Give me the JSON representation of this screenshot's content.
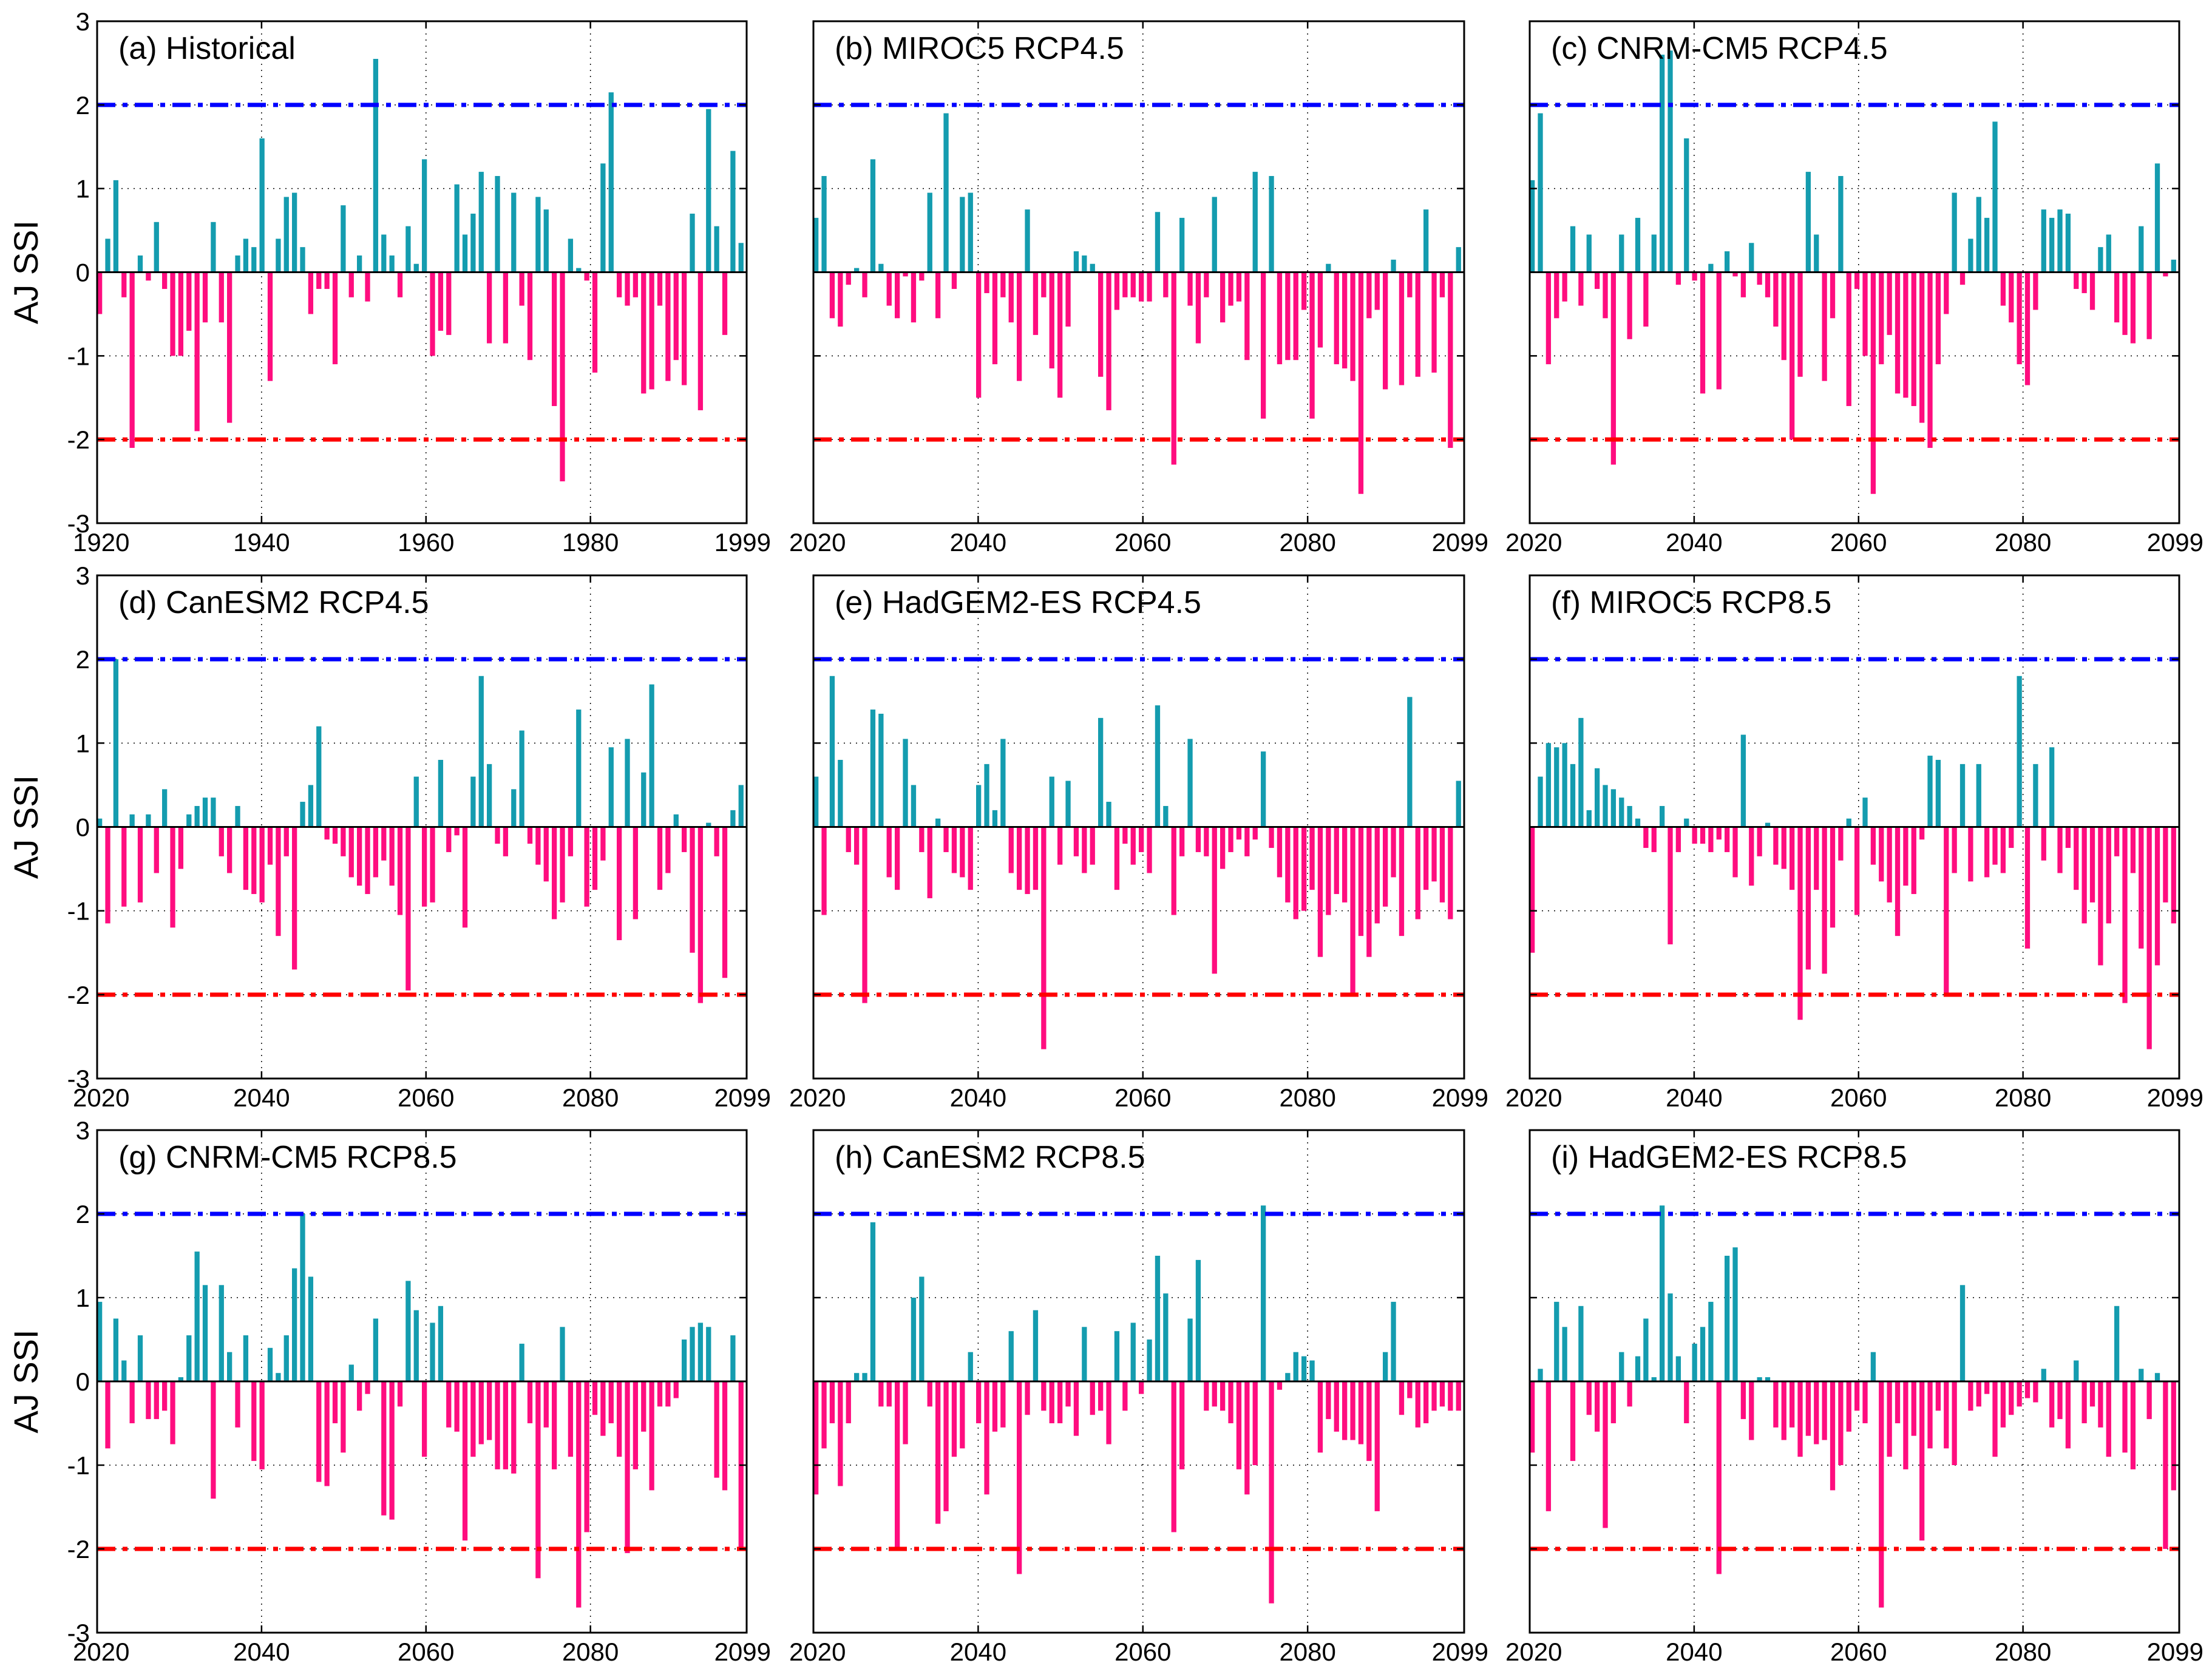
{
  "colors": {
    "positive": "#149caf",
    "negative": "#ff0d7f",
    "upper_threshold": "#0000ff",
    "lower_threshold": "#ff0000"
  },
  "ylabel": "AJ SSI",
  "chart_data": [
    {
      "type": "bar",
      "title": "(a) Historical",
      "xlabel": "",
      "ylabel": "AJ SSI",
      "ylim": [
        -3,
        3
      ],
      "yticks": [
        -3,
        -2,
        -1,
        0,
        1,
        2,
        3
      ],
      "xlim": [
        1920,
        1999
      ],
      "xticks": [
        1920,
        1940,
        1960,
        1980,
        1999
      ],
      "thresholds": [
        2,
        -2
      ],
      "x_start": 1920,
      "values": [
        -0.5,
        0.4,
        1.1,
        -0.3,
        -2.1,
        0.2,
        -0.1,
        0.6,
        -0.2,
        -1.0,
        -1.0,
        -0.7,
        -1.9,
        -0.6,
        0.6,
        -0.6,
        -1.8,
        0.2,
        0.4,
        0.3,
        1.6,
        -1.3,
        0.4,
        0.9,
        0.95,
        0.3,
        -0.5,
        -0.2,
        -0.2,
        -1.1,
        0.8,
        -0.3,
        0.2,
        -0.35,
        2.55,
        0.45,
        0.2,
        -0.3,
        0.55,
        0.1,
        1.35,
        -1.0,
        -0.7,
        -0.75,
        1.05,
        0.45,
        0.7,
        1.2,
        -0.85,
        1.15,
        -0.85,
        0.95,
        -0.4,
        -1.05,
        0.9,
        0.75,
        -1.6,
        -2.5,
        0.4,
        0.05,
        -0.1,
        -1.2,
        1.3,
        2.15,
        -0.3,
        -0.4,
        -0.3,
        -1.45,
        -1.4,
        -0.4,
        -1.3,
        -1.05,
        -1.35,
        0.7,
        -1.65,
        1.95,
        0.55,
        -0.75,
        1.45,
        0.35
      ]
    },
    {
      "type": "bar",
      "title": "(b) MIROC5 RCP4.5",
      "xlabel": "",
      "ylabel": "",
      "ylim": [
        -3,
        3
      ],
      "yticks": [
        -3,
        -2,
        -1,
        0,
        1,
        2,
        3
      ],
      "xlim": [
        2020,
        2099
      ],
      "xticks": [
        2020,
        2040,
        2060,
        2080,
        2099
      ],
      "thresholds": [
        2,
        -2
      ],
      "x_start": 2020,
      "values": [
        0.65,
        1.15,
        -0.55,
        -0.65,
        -0.15,
        0.05,
        -0.3,
        1.35,
        0.1,
        -0.4,
        -0.55,
        -0.05,
        -0.6,
        -0.1,
        0.95,
        -0.55,
        1.9,
        -0.2,
        0.9,
        0.95,
        -1.5,
        -0.25,
        -1.1,
        -0.3,
        -0.6,
        -1.3,
        0.75,
        -0.75,
        -0.3,
        -1.15,
        -1.5,
        -0.65,
        0.25,
        0.2,
        0.1,
        -1.25,
        -1.65,
        -0.45,
        -0.3,
        -0.3,
        -0.35,
        -0.35,
        0.72,
        -0.3,
        -2.3,
        0.65,
        -0.4,
        -0.85,
        -0.3,
        0.9,
        -0.6,
        -0.4,
        -0.35,
        -1.05,
        1.2,
        -1.75,
        1.15,
        -1.1,
        -1.05,
        -1.05,
        -0.45,
        -1.75,
        -0.9,
        0.1,
        -1.1,
        -1.15,
        -1.3,
        -2.65,
        -0.55,
        -0.45,
        -1.4,
        0.15,
        -1.35,
        -0.3,
        -1.25,
        0.75,
        -1.2,
        -0.3,
        -2.1,
        0.3
      ]
    },
    {
      "type": "bar",
      "title": "(c) CNRM-CM5 RCP4.5",
      "xlabel": "",
      "ylabel": "",
      "ylim": [
        -3,
        3
      ],
      "yticks": [
        -3,
        -2,
        -1,
        0,
        1,
        2,
        3
      ],
      "xlim": [
        2020,
        2099
      ],
      "xticks": [
        2020,
        2040,
        2060,
        2080,
        2099
      ],
      "thresholds": [
        2,
        -2
      ],
      "x_start": 2020,
      "values": [
        1.1,
        1.9,
        -1.1,
        -0.55,
        -0.35,
        0.55,
        -0.4,
        0.45,
        -0.2,
        -0.55,
        -2.3,
        0.45,
        -0.8,
        0.65,
        -0.65,
        0.45,
        2.6,
        2.65,
        -0.15,
        1.6,
        -0.1,
        -1.45,
        0.1,
        -1.4,
        0.25,
        -0.05,
        -0.3,
        0.35,
        -0.15,
        -0.3,
        -0.65,
        -1.05,
        -2.0,
        -1.25,
        1.2,
        0.45,
        -1.3,
        -0.55,
        1.15,
        -1.6,
        -0.2,
        -1.0,
        -2.65,
        -1.1,
        -0.75,
        -1.45,
        -1.5,
        -1.6,
        -1.8,
        -2.1,
        -1.1,
        -0.5,
        0.95,
        -0.15,
        0.4,
        0.9,
        0.65,
        1.8,
        -0.4,
        -0.6,
        -1.1,
        -1.35,
        -0.45,
        0.75,
        0.65,
        0.75,
        0.7,
        -0.2,
        -0.25,
        -0.45,
        0.3,
        0.45,
        -0.6,
        -0.75,
        -0.85,
        0.55,
        -0.8,
        1.3,
        -0.05,
        0.15
      ]
    },
    {
      "type": "bar",
      "title": "(d) CanESM2 RCP4.5",
      "xlabel": "",
      "ylabel": "AJ SSI",
      "ylim": [
        -3,
        3
      ],
      "yticks": [
        -3,
        -2,
        -1,
        0,
        1,
        2,
        3
      ],
      "xlim": [
        2020,
        2099
      ],
      "xticks": [
        2020,
        2040,
        2060,
        2080,
        2099
      ],
      "thresholds": [
        2,
        -2
      ],
      "x_start": 2020,
      "values": [
        0.1,
        -1.15,
        2.0,
        -0.95,
        0.15,
        -0.9,
        0.15,
        -0.55,
        0.45,
        -1.2,
        -0.5,
        0.15,
        0.25,
        0.35,
        0.35,
        -0.35,
        -0.55,
        0.25,
        -0.75,
        -0.8,
        -0.9,
        -0.45,
        -1.3,
        -0.35,
        -1.7,
        0.3,
        0.5,
        1.2,
        -0.15,
        -0.2,
        -0.35,
        -0.6,
        -0.7,
        -0.8,
        -0.6,
        -0.4,
        -0.7,
        -1.05,
        -1.95,
        0.6,
        -0.95,
        -0.9,
        0.8,
        -0.3,
        -0.1,
        -1.2,
        0.6,
        1.8,
        0.75,
        -0.2,
        -0.35,
        0.45,
        1.15,
        -0.2,
        -0.45,
        -0.65,
        -1.1,
        -0.9,
        -0.35,
        1.4,
        -0.95,
        -0.75,
        -0.4,
        0.95,
        -1.35,
        1.05,
        -1.1,
        0.65,
        1.7,
        -0.75,
        -0.55,
        0.15,
        -0.3,
        -1.5,
        -2.1,
        0.05,
        -0.35,
        -1.8,
        0.2,
        0.5
      ]
    },
    {
      "type": "bar",
      "title": "(e) HadGEM2-ES RCP4.5",
      "xlabel": "",
      "ylabel": "",
      "ylim": [
        -3,
        3
      ],
      "yticks": [
        -3,
        -2,
        -1,
        0,
        1,
        2,
        3
      ],
      "xlim": [
        2020,
        2099
      ],
      "xticks": [
        2020,
        2040,
        2060,
        2080,
        2099
      ],
      "thresholds": [
        2,
        -2
      ],
      "x_start": 2020,
      "values": [
        0.6,
        -1.05,
        1.8,
        0.8,
        -0.3,
        -0.45,
        -2.1,
        1.4,
        1.35,
        -0.6,
        -0.75,
        1.05,
        0.5,
        -0.3,
        -0.85,
        0.1,
        -0.3,
        -0.55,
        -0.6,
        -0.75,
        0.5,
        0.75,
        0.2,
        1.05,
        -0.55,
        -0.75,
        -0.8,
        -0.75,
        -2.65,
        0.6,
        -0.45,
        0.55,
        -0.35,
        -0.55,
        -0.45,
        1.3,
        0.3,
        -0.75,
        -0.2,
        -0.45,
        -0.3,
        -0.55,
        1.45,
        0.25,
        -1.05,
        -0.35,
        1.05,
        -0.3,
        -0.35,
        -1.75,
        -0.5,
        -0.3,
        -0.15,
        -0.35,
        -0.15,
        0.9,
        -0.25,
        -0.6,
        -0.9,
        -1.1,
        -1.0,
        -0.75,
        -1.55,
        -1.05,
        -0.8,
        -0.9,
        -2.0,
        -1.3,
        -1.55,
        -1.15,
        -0.95,
        -0.6,
        -1.3,
        1.55,
        -1.1,
        -0.75,
        -0.65,
        -0.9,
        -1.1,
        0.55
      ]
    },
    {
      "type": "bar",
      "title": "(f) MIROC5 RCP8.5",
      "xlabel": "",
      "ylabel": "",
      "ylim": [
        -3,
        3
      ],
      "yticks": [
        -3,
        -2,
        -1,
        0,
        1,
        2,
        3
      ],
      "xlim": [
        2020,
        2099
      ],
      "xticks": [
        2020,
        2040,
        2060,
        2080,
        2099
      ],
      "thresholds": [
        2,
        -2
      ],
      "x_start": 2020,
      "values": [
        -1.5,
        0.6,
        1.0,
        0.95,
        1.0,
        0.75,
        1.3,
        0.2,
        0.7,
        0.5,
        0.45,
        0.35,
        0.25,
        0.1,
        -0.25,
        -0.3,
        0.25,
        -1.4,
        -0.3,
        0.1,
        -0.2,
        -0.2,
        -0.3,
        -0.15,
        -0.3,
        -0.6,
        1.1,
        -0.7,
        -0.35,
        0.05,
        -0.45,
        -0.5,
        -0.75,
        -2.3,
        -1.7,
        -0.75,
        -1.75,
        -1.2,
        -0.4,
        0.1,
        -1.05,
        0.35,
        -0.45,
        -0.65,
        -0.9,
        -1.3,
        -0.7,
        -0.8,
        -0.15,
        0.85,
        0.8,
        -2.0,
        -0.55,
        0.75,
        -0.65,
        0.75,
        -0.6,
        -0.45,
        -0.55,
        -0.25,
        1.8,
        -1.45,
        0.75,
        -0.4,
        0.95,
        -0.55,
        -0.25,
        -0.75,
        -1.15,
        -0.9,
        -1.65,
        -1.15,
        -0.35,
        -2.1,
        -0.55,
        -1.45,
        -2.65,
        -1.65,
        -0.9,
        -1.15
      ]
    },
    {
      "type": "bar",
      "title": "(g) CNRM-CM5 RCP8.5",
      "xlabel": "",
      "ylabel": "AJ SSI",
      "ylim": [
        -3,
        3
      ],
      "yticks": [
        -3,
        -2,
        -1,
        0,
        1,
        2,
        3
      ],
      "xlim": [
        2020,
        2099
      ],
      "xticks": [
        2020,
        2040,
        2060,
        2080,
        2099
      ],
      "thresholds": [
        2,
        -2
      ],
      "x_start": 2020,
      "values": [
        0.95,
        -0.8,
        0.75,
        0.25,
        -0.5,
        0.55,
        -0.45,
        -0.45,
        -0.35,
        -0.75,
        0.05,
        0.55,
        1.55,
        1.15,
        -1.4,
        1.15,
        0.35,
        -0.55,
        0.55,
        -0.95,
        -1.05,
        0.4,
        0.1,
        0.55,
        1.35,
        2.0,
        1.25,
        -1.2,
        -1.25,
        -0.5,
        -0.85,
        0.2,
        -0.35,
        -0.15,
        0.75,
        -1.6,
        -1.65,
        -0.3,
        1.2,
        0.85,
        -0.9,
        0.7,
        0.9,
        -0.55,
        -0.6,
        -1.9,
        -0.9,
        -0.75,
        -0.7,
        -1.05,
        -1.05,
        -1.1,
        0.45,
        -0.5,
        -2.35,
        -0.55,
        -1.05,
        0.65,
        -0.9,
        -2.7,
        -1.8,
        -0.4,
        -0.65,
        -0.5,
        -0.9,
        -2.05,
        -1.05,
        -0.6,
        -1.3,
        -0.3,
        -0.3,
        -0.2,
        0.5,
        0.65,
        0.7,
        0.65,
        -1.15,
        -1.3,
        0.55,
        -2.0
      ]
    },
    {
      "type": "bar",
      "title": "(h) CanESM2 RCP8.5",
      "xlabel": "",
      "ylabel": "",
      "ylim": [
        -3,
        3
      ],
      "yticks": [
        -3,
        -2,
        -1,
        0,
        1,
        2,
        3
      ],
      "xlim": [
        2020,
        2099
      ],
      "xticks": [
        2020,
        2040,
        2060,
        2080,
        2099
      ],
      "thresholds": [
        2,
        -2
      ],
      "x_start": 2020,
      "values": [
        -1.35,
        -0.8,
        -0.5,
        -1.25,
        -0.5,
        0.1,
        0.1,
        1.9,
        -0.3,
        -0.3,
        -2.0,
        -0.75,
        1.0,
        1.25,
        -0.3,
        -1.7,
        -1.55,
        -0.9,
        -0.8,
        0.35,
        -0.5,
        -1.35,
        -0.6,
        -0.55,
        0.6,
        -2.3,
        -0.4,
        0.85,
        -0.35,
        -0.5,
        -0.5,
        -0.3,
        -0.65,
        0.65,
        -0.4,
        -0.35,
        -0.75,
        0.6,
        -0.35,
        0.7,
        -0.15,
        0.5,
        1.5,
        1.05,
        -1.8,
        -1.05,
        0.75,
        1.45,
        -0.35,
        -0.3,
        -0.35,
        -0.5,
        -1.05,
        -1.35,
        -1.0,
        2.1,
        -2.65,
        -0.1,
        0.1,
        0.35,
        0.3,
        0.25,
        -0.85,
        -0.45,
        -0.6,
        -0.7,
        -0.7,
        -0.75,
        -0.95,
        -1.55,
        0.35,
        0.95,
        -0.4,
        -0.2,
        -0.55,
        -0.5,
        -0.35,
        -0.3,
        -0.35,
        -0.35
      ]
    },
    {
      "type": "bar",
      "title": "(i) HadGEM2-ES RCP8.5",
      "xlabel": "",
      "ylabel": "",
      "ylim": [
        -3,
        3
      ],
      "yticks": [
        -3,
        -2,
        -1,
        0,
        1,
        2,
        3
      ],
      "xlim": [
        2020,
        2099
      ],
      "xticks": [
        2020,
        2040,
        2060,
        2080,
        2099
      ],
      "thresholds": [
        2,
        -2
      ],
      "x_start": 2020,
      "values": [
        -0.85,
        0.15,
        -1.55,
        0.95,
        0.65,
        -0.95,
        0.9,
        -0.4,
        -0.6,
        -1.75,
        -0.5,
        0.35,
        -0.3,
        0.3,
        0.75,
        0.05,
        2.1,
        1.05,
        0.3,
        -0.5,
        0.45,
        0.65,
        0.95,
        -2.3,
        1.5,
        1.6,
        -0.45,
        -0.7,
        0.05,
        0.05,
        -0.55,
        -0.7,
        -0.55,
        -0.9,
        -0.65,
        -0.75,
        -0.7,
        -1.3,
        -1.0,
        -0.6,
        -0.35,
        -0.5,
        0.35,
        -2.7,
        -0.9,
        -0.5,
        -1.05,
        -0.65,
        -1.9,
        -0.8,
        -0.35,
        -0.8,
        -1.0,
        1.15,
        -0.35,
        -0.3,
        -0.15,
        -0.9,
        -0.55,
        -0.4,
        -0.3,
        -0.2,
        -0.25,
        0.15,
        -0.55,
        -0.45,
        -0.8,
        0.25,
        -0.5,
        -0.3,
        -0.55,
        -0.9,
        0.9,
        -0.85,
        -1.05,
        0.15,
        -0.45,
        0.1,
        -2.0,
        -1.3
      ]
    }
  ]
}
